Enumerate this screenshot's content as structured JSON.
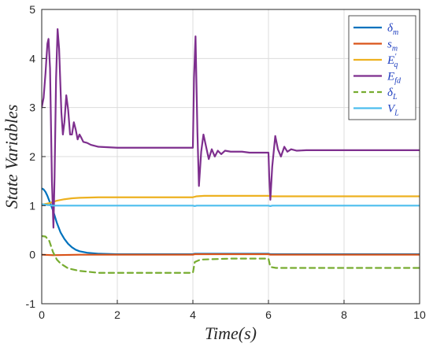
{
  "chart_data": {
    "type": "line",
    "xlabel": "Time(s)",
    "ylabel": "State Variables",
    "xlim": [
      0,
      10
    ],
    "ylim": [
      -1,
      5
    ],
    "xticks": [
      "0",
      "2",
      "4",
      "6",
      "8",
      "10"
    ],
    "yticks": [
      "-1",
      "0",
      "1",
      "2",
      "3",
      "4",
      "5"
    ],
    "grid": true,
    "legend_position": "top-right",
    "series": [
      {
        "key": "delta_m",
        "name": "δm",
        "label_main": "δ",
        "label_sub": "m",
        "color": "#0072bd",
        "dash": "solid",
        "points": [
          [
            0,
            1.35
          ],
          [
            0.05,
            1.33
          ],
          [
            0.1,
            1.28
          ],
          [
            0.15,
            1.2
          ],
          [
            0.2,
            1.1
          ],
          [
            0.3,
            0.9
          ],
          [
            0.4,
            0.65
          ],
          [
            0.5,
            0.45
          ],
          [
            0.6,
            0.32
          ],
          [
            0.7,
            0.22
          ],
          [
            0.8,
            0.15
          ],
          [
            0.9,
            0.1
          ],
          [
            1.0,
            0.07
          ],
          [
            1.2,
            0.04
          ],
          [
            1.5,
            0.02
          ],
          [
            2.0,
            0.01
          ],
          [
            4.0,
            0.01
          ],
          [
            4.05,
            0.02
          ],
          [
            6.0,
            0.02
          ],
          [
            6.05,
            0.01
          ],
          [
            10,
            0.01
          ]
        ]
      },
      {
        "key": "s_m",
        "name": "sm",
        "label_main": "s",
        "label_sub": "m",
        "color": "#d95319",
        "dash": "solid",
        "points": [
          [
            0,
            0.0
          ],
          [
            0.3,
            -0.01
          ],
          [
            1.0,
            0.0
          ],
          [
            4.0,
            0.0
          ],
          [
            4.05,
            0.01
          ],
          [
            6.0,
            0.01
          ],
          [
            6.05,
            0.0
          ],
          [
            10,
            0.0
          ]
        ]
      },
      {
        "key": "E_q",
        "name": "E'q",
        "label_main": "E",
        "label_sup": "′",
        "label_sub": "q",
        "color": "#edb120",
        "dash": "solid",
        "points": [
          [
            0,
            1.02
          ],
          [
            0.2,
            1.05
          ],
          [
            0.4,
            1.1
          ],
          [
            0.6,
            1.13
          ],
          [
            0.8,
            1.15
          ],
          [
            1.0,
            1.16
          ],
          [
            1.5,
            1.17
          ],
          [
            4.0,
            1.17
          ],
          [
            4.1,
            1.19
          ],
          [
            4.3,
            1.2
          ],
          [
            6.0,
            1.2
          ],
          [
            6.1,
            1.19
          ],
          [
            10,
            1.19
          ]
        ]
      },
      {
        "key": "E_fd",
        "name": "Efd",
        "label_main": "E",
        "label_sub": "fd",
        "color": "#7e2f8e",
        "dash": "solid",
        "points": [
          [
            0,
            3.0
          ],
          [
            0.05,
            3.2
          ],
          [
            0.1,
            3.7
          ],
          [
            0.15,
            4.3
          ],
          [
            0.18,
            4.4
          ],
          [
            0.22,
            3.8
          ],
          [
            0.27,
            1.5
          ],
          [
            0.31,
            0.55
          ],
          [
            0.34,
            1.6
          ],
          [
            0.38,
            3.6
          ],
          [
            0.42,
            4.6
          ],
          [
            0.46,
            4.2
          ],
          [
            0.52,
            2.9
          ],
          [
            0.56,
            2.45
          ],
          [
            0.6,
            2.7
          ],
          [
            0.65,
            3.25
          ],
          [
            0.7,
            2.95
          ],
          [
            0.75,
            2.45
          ],
          [
            0.8,
            2.45
          ],
          [
            0.85,
            2.7
          ],
          [
            0.9,
            2.55
          ],
          [
            0.95,
            2.35
          ],
          [
            1.0,
            2.45
          ],
          [
            1.05,
            2.38
          ],
          [
            1.1,
            2.3
          ],
          [
            1.2,
            2.28
          ],
          [
            1.3,
            2.24
          ],
          [
            1.5,
            2.2
          ],
          [
            2.0,
            2.18
          ],
          [
            4.0,
            2.18
          ],
          [
            4.03,
            3.6
          ],
          [
            4.07,
            4.45
          ],
          [
            4.12,
            2.5
          ],
          [
            4.16,
            1.4
          ],
          [
            4.22,
            2.1
          ],
          [
            4.28,
            2.45
          ],
          [
            4.35,
            2.2
          ],
          [
            4.42,
            1.95
          ],
          [
            4.5,
            2.15
          ],
          [
            4.58,
            2.0
          ],
          [
            4.66,
            2.12
          ],
          [
            4.75,
            2.05
          ],
          [
            4.85,
            2.12
          ],
          [
            5.0,
            2.1
          ],
          [
            5.3,
            2.1
          ],
          [
            5.5,
            2.08
          ],
          [
            6.0,
            2.08
          ],
          [
            6.02,
            1.6
          ],
          [
            6.05,
            1.12
          ],
          [
            6.1,
            1.8
          ],
          [
            6.18,
            2.42
          ],
          [
            6.25,
            2.15
          ],
          [
            6.33,
            2.0
          ],
          [
            6.42,
            2.2
          ],
          [
            6.5,
            2.1
          ],
          [
            6.6,
            2.15
          ],
          [
            6.75,
            2.12
          ],
          [
            7.0,
            2.13
          ],
          [
            10,
            2.13
          ]
        ]
      },
      {
        "key": "delta_L",
        "name": "δL",
        "label_main": "δ",
        "label_sub": "L",
        "color": "#77ac30",
        "dash": "dashed",
        "points": [
          [
            0,
            0.38
          ],
          [
            0.1,
            0.37
          ],
          [
            0.2,
            0.28
          ],
          [
            0.3,
            0.05
          ],
          [
            0.4,
            -0.1
          ],
          [
            0.5,
            -0.18
          ],
          [
            0.7,
            -0.28
          ],
          [
            1.0,
            -0.33
          ],
          [
            1.5,
            -0.37
          ],
          [
            4.0,
            -0.37
          ],
          [
            4.05,
            -0.15
          ],
          [
            4.2,
            -0.1
          ],
          [
            5.0,
            -0.08
          ],
          [
            6.0,
            -0.08
          ],
          [
            6.05,
            -0.25
          ],
          [
            6.2,
            -0.27
          ],
          [
            10,
            -0.27
          ]
        ]
      },
      {
        "key": "V_L",
        "name": "VL",
        "label_main": "V",
        "label_sub": "L",
        "color": "#4dbeee",
        "dash": "solid",
        "points": [
          [
            0,
            1.03
          ],
          [
            0.3,
            1.0
          ],
          [
            1.0,
            1.0
          ],
          [
            4.0,
            1.0
          ],
          [
            4.05,
            0.99
          ],
          [
            4.1,
            1.0
          ],
          [
            6.0,
            1.0
          ],
          [
            6.05,
            0.99
          ],
          [
            6.1,
            1.0
          ],
          [
            10,
            1.0
          ]
        ]
      }
    ]
  }
}
